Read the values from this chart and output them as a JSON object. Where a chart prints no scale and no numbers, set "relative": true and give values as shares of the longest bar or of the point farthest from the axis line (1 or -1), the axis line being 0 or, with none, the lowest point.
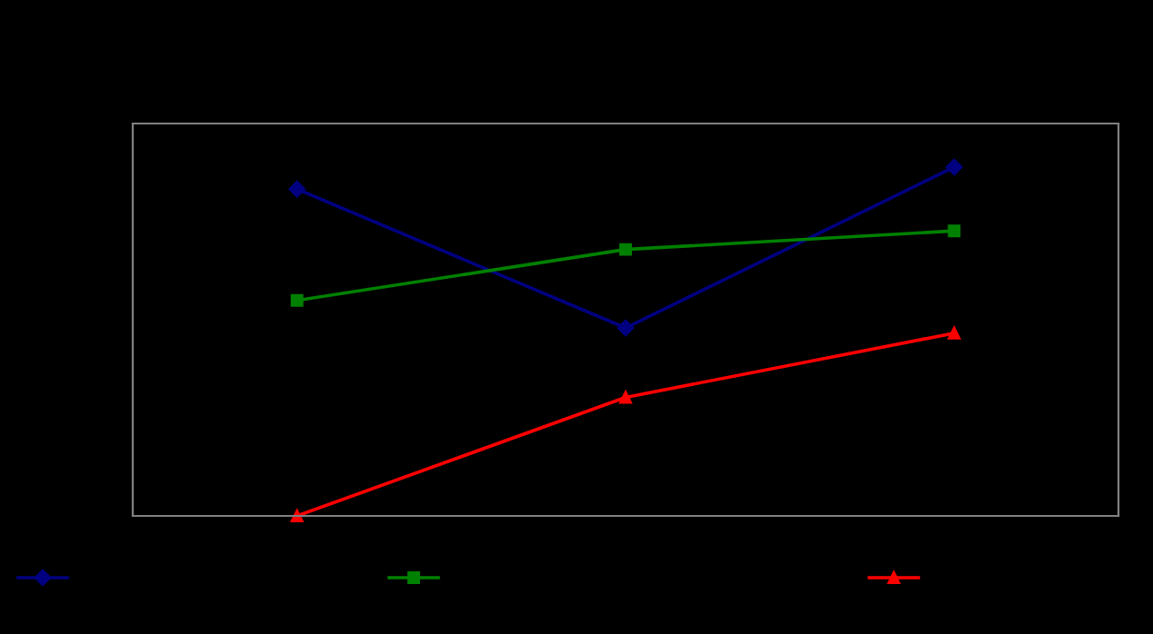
{
  "chart_data": {
    "type": "line",
    "relative": true,
    "categories": [
      null,
      null,
      null
    ],
    "series": [
      {
        "color": "#000080",
        "marker": "diamond",
        "values": [
          0.937,
          0.539,
          1
        ]
      },
      {
        "color": "#008000",
        "marker": "square",
        "values": [
          0.618,
          0.764,
          0.817
        ]
      },
      {
        "color": "#ff0000",
        "marker": "triangle",
        "values": [
          0,
          0.34,
          0.524
        ]
      }
    ],
    "grid": false,
    "line_style": "solid"
  }
}
